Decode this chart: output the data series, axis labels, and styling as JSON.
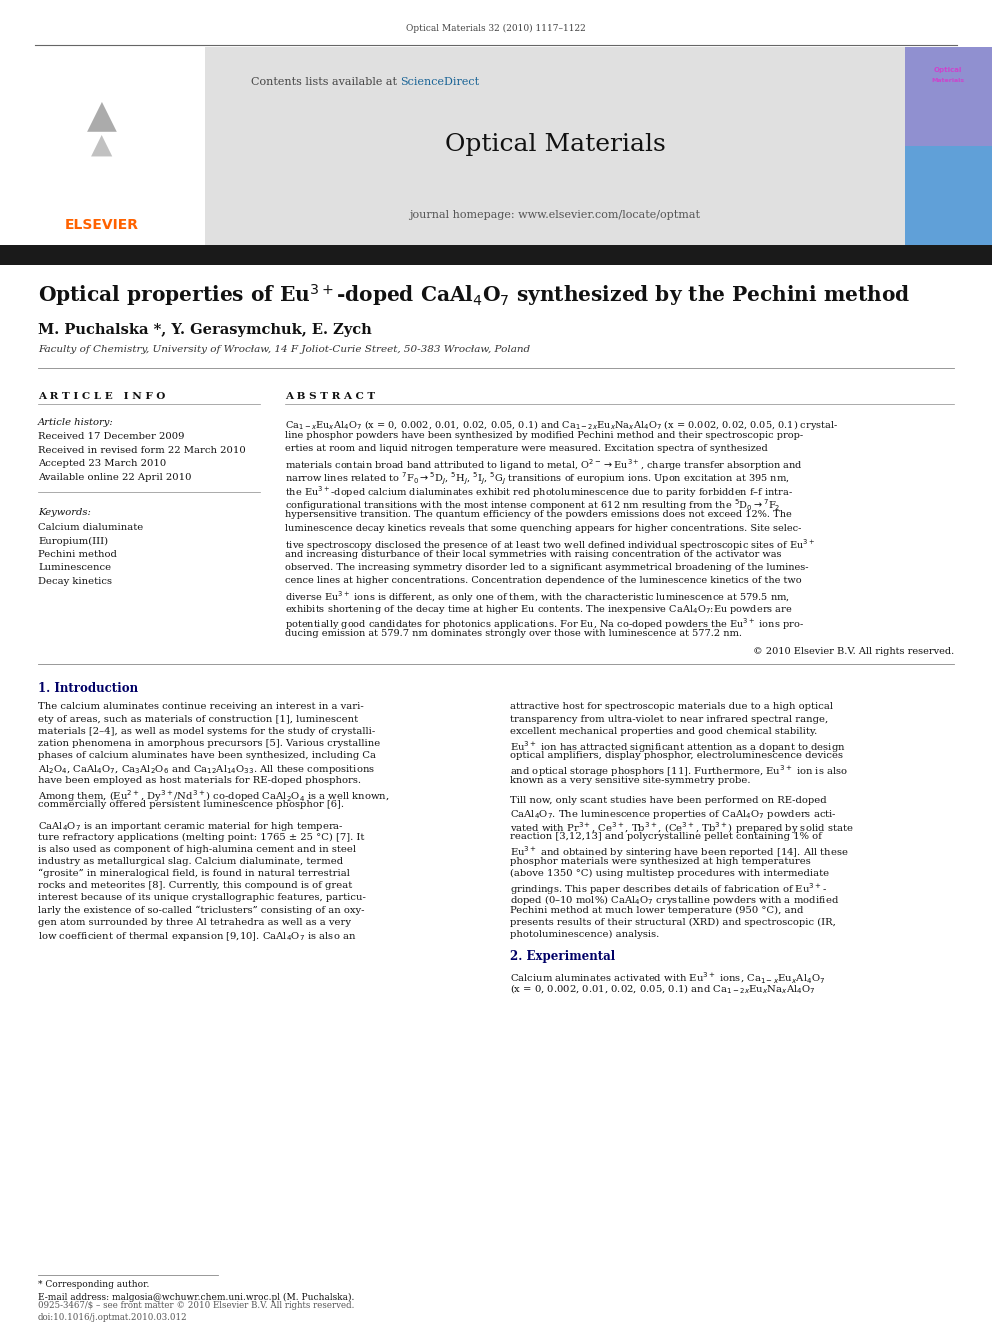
{
  "page_width": 9.92,
  "page_height": 13.23,
  "bg": "#ffffff",
  "journal_ref": "Optical Materials 32 (2010) 1117–1122",
  "header_text_left": "Contents lists available at ",
  "sciencedirect": "ScienceDirect",
  "sciencedirect_color": "#1a6496",
  "journal_title": "Optical Materials",
  "journal_url": "journal homepage: www.elsevier.com/locate/optmat",
  "elsevier_color": "#FF6200",
  "elsevier_text": "ELSEVIER",
  "article_title_line1": "Optical properties of Eu",
  "article_title_line2": "-doped CaAl",
  "article_title_line3": "O",
  "article_title_line4": " synthesized by the Pechini method",
  "authors": "M. Puchalska *, Y. Gerasymchuk, E. Zych",
  "affiliation": "Faculty of Chemistry, University of Wrocław, 14 F Joliot-Curie Street, 50-383 Wrocław, Poland",
  "art_info_header": "A R T I C L E   I N F O",
  "abstract_header": "A B S T R A C T",
  "history_label": "Article history:",
  "history_items": [
    "Received 17 December 2009",
    "Received in revised form 22 March 2010",
    "Accepted 23 March 2010",
    "Available online 22 April 2010"
  ],
  "keywords_label": "Keywords:",
  "keywords": [
    "Calcium dialuminate",
    "Europium(III)",
    "Pechini method",
    "Luminescence",
    "Decay kinetics"
  ],
  "abstract_lines": [
    "Ca$_{1-x}$Eu$_x$Al$_4$O$_7$ (x = 0, 0.002, 0.01, 0.02, 0.05, 0.1) and Ca$_{1-2x}$Eu$_x$Na$_x$Al$_4$O$_7$ (x = 0.002, 0.02, 0.05, 0.1) crystal-",
    "line phosphor powders have been synthesized by modified Pechini method and their spectroscopic prop-",
    "erties at room and liquid nitrogen temperature were measured. Excitation spectra of synthesized",
    "materials contain broad band attributed to ligand to metal, O$^{2-}$$\\rightarrow$Eu$^{3+}$, charge transfer absorption and",
    "narrow lines related to $^7$F$_0$$\\rightarrow$$^5$D$_J$, $^5$H$_J$, $^5$I$_J$, $^5$G$_J$ transitions of europium ions. Upon excitation at 395 nm,",
    "the Eu$^{3+}$-doped calcium dialuminates exhibit red photoluminescence due to parity forbidden f–f intra-",
    "configurational transitions with the most intense component at 612 nm resulting from the $^5$D$_0$$\\rightarrow$$^7$F$_2$",
    "hypersensitive transition. The quantum efficiency of the powders emissions does not exceed 12%. The",
    "luminescence decay kinetics reveals that some quenching appears for higher concentrations. Site selec-",
    "tive spectroscopy disclosed the presence of at least two well defined individual spectroscopic sites of Eu$^{3+}$",
    "and increasing disturbance of their local symmetries with raising concentration of the activator was",
    "observed. The increasing symmetry disorder led to a significant asymmetrical broadening of the lumines-",
    "cence lines at higher concentrations. Concentration dependence of the luminescence kinetics of the two",
    "diverse Eu$^{3+}$ ions is different, as only one of them, with the characteristic luminescence at 579.5 nm,",
    "exhibits shortening of the decay time at higher Eu contents. The inexpensive CaAl$_4$O$_7$:Eu powders are",
    "potentially good candidates for photonics applications. For Eu, Na co-doped powders the Eu$^{3+}$ ions pro-",
    "ducing emission at 579.7 nm dominates strongly over those with luminescence at 577.2 nm."
  ],
  "copyright": "© 2010 Elsevier B.V. All rights reserved.",
  "intro_heading": "1. Introduction",
  "col1_para1": [
    "The calcium aluminates continue receiving an interest in a vari-",
    "ety of areas, such as materials of construction [1], luminescent",
    "materials [2–4], as well as model systems for the study of crystalli-",
    "zation phenomena in amorphous precursors [5]. Various crystalline",
    "phases of calcium aluminates have been synthesized, including Ca",
    "Al$_2$O$_4$, CaAl$_4$O$_7$, Ca$_3$Al$_2$O$_6$ and Ca$_{12}$Al$_{14}$O$_{33}$. All these compositions",
    "have been employed as host materials for RE-doped phosphors.",
    "Among them, (Eu$^{2+}$, Dy$^{3+}$/Nd$^{3+}$) co-doped CaAl$_2$O$_4$ is a well known,",
    "commercially offered persistent luminescence phosphor [6]."
  ],
  "col1_para2": [
    "CaAl$_4$O$_7$ is an important ceramic material for high tempera-",
    "ture refractory applications (melting point: 1765 ± 25 °C) [7]. It",
    "is also used as component of high-alumina cement and in steel",
    "industry as metallurgical slag. Calcium dialuminate, termed",
    "“grosite” in mineralogical field, is found in natural terrestrial",
    "rocks and meteorites [8]. Currently, this compound is of great",
    "interest because of its unique crystallographic features, particu-",
    "larly the existence of so-called “triclusters” consisting of an oxy-",
    "gen atom surrounded by three Al tetrahedra as well as a very",
    "low coefficient of thermal expansion [9,10]. CaAl$_4$O$_7$ is also an"
  ],
  "col2_para1": [
    "attractive host for spectroscopic materials due to a high optical",
    "transparency from ultra-violet to near infrared spectral range,",
    "excellent mechanical properties and good chemical stability.",
    "Eu$^{3+}$ ion has attracted significant attention as a dopant to design",
    "optical amplifiers, display phosphor, electroluminescence devices",
    "and optical storage phosphors [11]. Furthermore, Eu$^{3+}$ ion is also",
    "known as a very sensitive site-symmetry probe."
  ],
  "col2_para2": [
    "Till now, only scant studies have been performed on RE-doped",
    "CaAl$_4$O$_7$. The luminescence properties of CaAl$_4$O$_7$ powders acti-",
    "vated with Pr$^{3+}$, Ce$^{3+}$, Tb$^{3+}$, (Ce$^{3+}$, Tb$^{3+}$) prepared by solid state",
    "reaction [3,12,13] and polycrystalline pellet containing 1% of",
    "Eu$^{3+}$ and obtained by sintering have been reported [14]. All these",
    "phosphor materials were synthesized at high temperatures",
    "(above 1350 °C) using multistep procedures with intermediate",
    "grindings. This paper describes details of fabrication of Eu$^{3+}$-",
    "doped (0–10 mol%) CaAl$_4$O$_7$ crystalline powders with a modified",
    "Pechini method at much lower temperature (950 °C), and",
    "presents results of their structural (XRD) and spectroscopic (IR,",
    "photoluminescence) analysis."
  ],
  "sec2_heading": "2. Experimental",
  "sec2_lines": [
    "Calcium aluminates activated with Eu$^{3+}$ ions, Ca$_{1-x}$Eu$_x$Al$_4$O$_7$",
    "(x = 0, 0.002, 0.01, 0.02, 0.05, 0.1) and Ca$_{1-2x}$Eu$_x$Na$_x$Al$_4$O$_7$"
  ],
  "footnote_star": "* Corresponding author.",
  "footnote_email": "E-mail address: malgosia@wchuwr.chem.uni.wroc.pl (M. Puchalska).",
  "footer_issn": "0925-3467/$ – see front matter © 2010 Elsevier B.V. All rights reserved.",
  "footer_doi": "doi:10.1016/j.optmat.2010.03.012",
  "header_gray": "#e0e0e0",
  "cover_purple": "#7b68c8",
  "cover_blue": "#4a90d9",
  "thick_bar_color": "#1a1a1a"
}
